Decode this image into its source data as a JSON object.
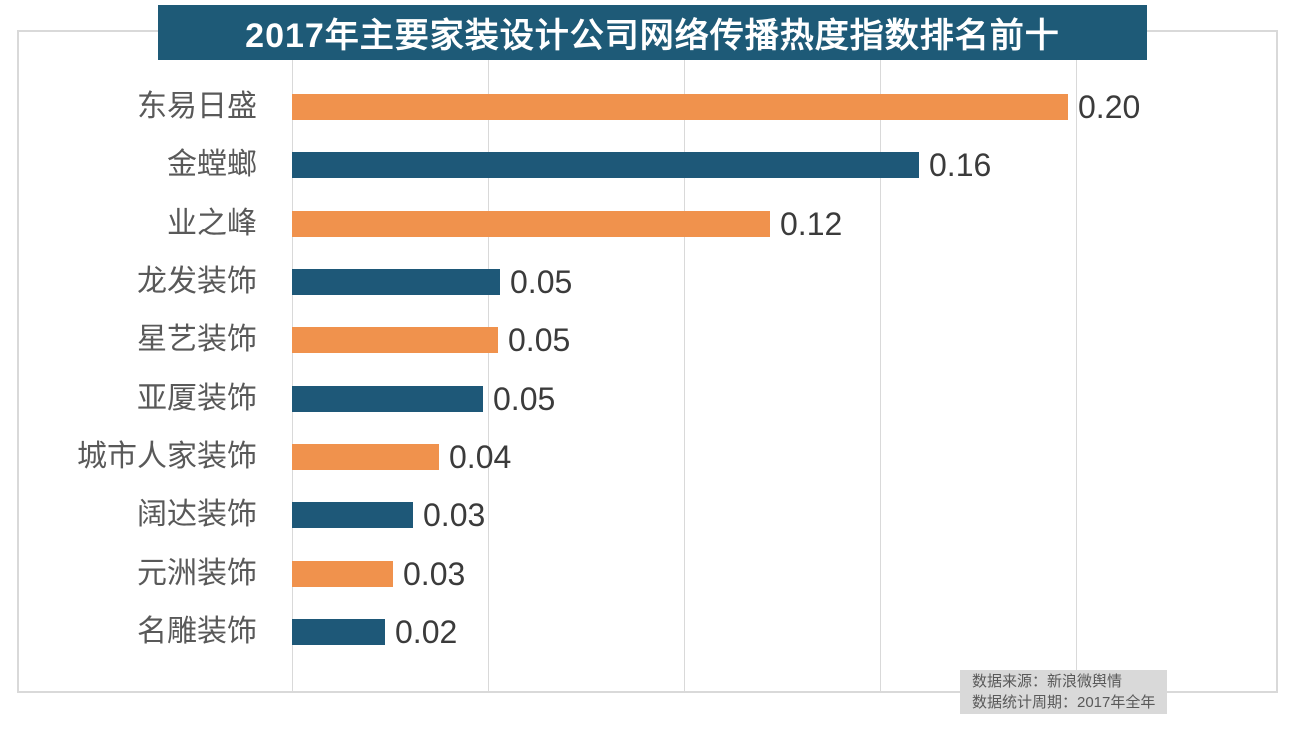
{
  "title": "2017年主要家装设计公司网络传播热度指数排名前十",
  "source": {
    "line1": "数据来源：新浪微舆情",
    "line2": "数据统计周期：2017年全年"
  },
  "colors": {
    "background": "#FFFFFF",
    "title_bg": "#1E5A77",
    "title_text": "#FFFFFF",
    "bar_orange": "#F0924D",
    "bar_blue": "#1E5878",
    "grid": "#D9D9D9",
    "frame": "#D9D9D9",
    "category_text": "#595959",
    "value_text": "#3B3B3B",
    "source_bg": "#D9D9D9",
    "source_text": "#595959"
  },
  "chart_data": {
    "type": "bar",
    "orientation": "horizontal",
    "title": "2017年主要家装设计公司网络传播热度指数排名前十",
    "categories": [
      "东易日盛",
      "金螳螂",
      "业之峰",
      "龙发装饰",
      "星艺装饰",
      "亚厦装饰",
      "城市人家装饰",
      "阔达装饰",
      "元洲装饰",
      "名雕装饰"
    ],
    "values": [
      "0.20",
      "0.16",
      "0.12",
      "0.05",
      "0.05",
      "0.05",
      "0.04",
      "0.03",
      "0.03",
      "0.02"
    ],
    "values_precise": [
      0.198,
      0.16,
      0.122,
      0.053,
      0.0525,
      0.0487,
      0.0375,
      0.0309,
      0.0258,
      0.0237
    ],
    "bar_color_pattern": [
      "orange",
      "blue"
    ],
    "xlim": [
      0,
      0.25
    ],
    "gridlines": [
      0,
      0.05,
      0.1,
      0.15,
      0.2
    ],
    "legend": "none",
    "value_label_position": "end-of-bar"
  }
}
